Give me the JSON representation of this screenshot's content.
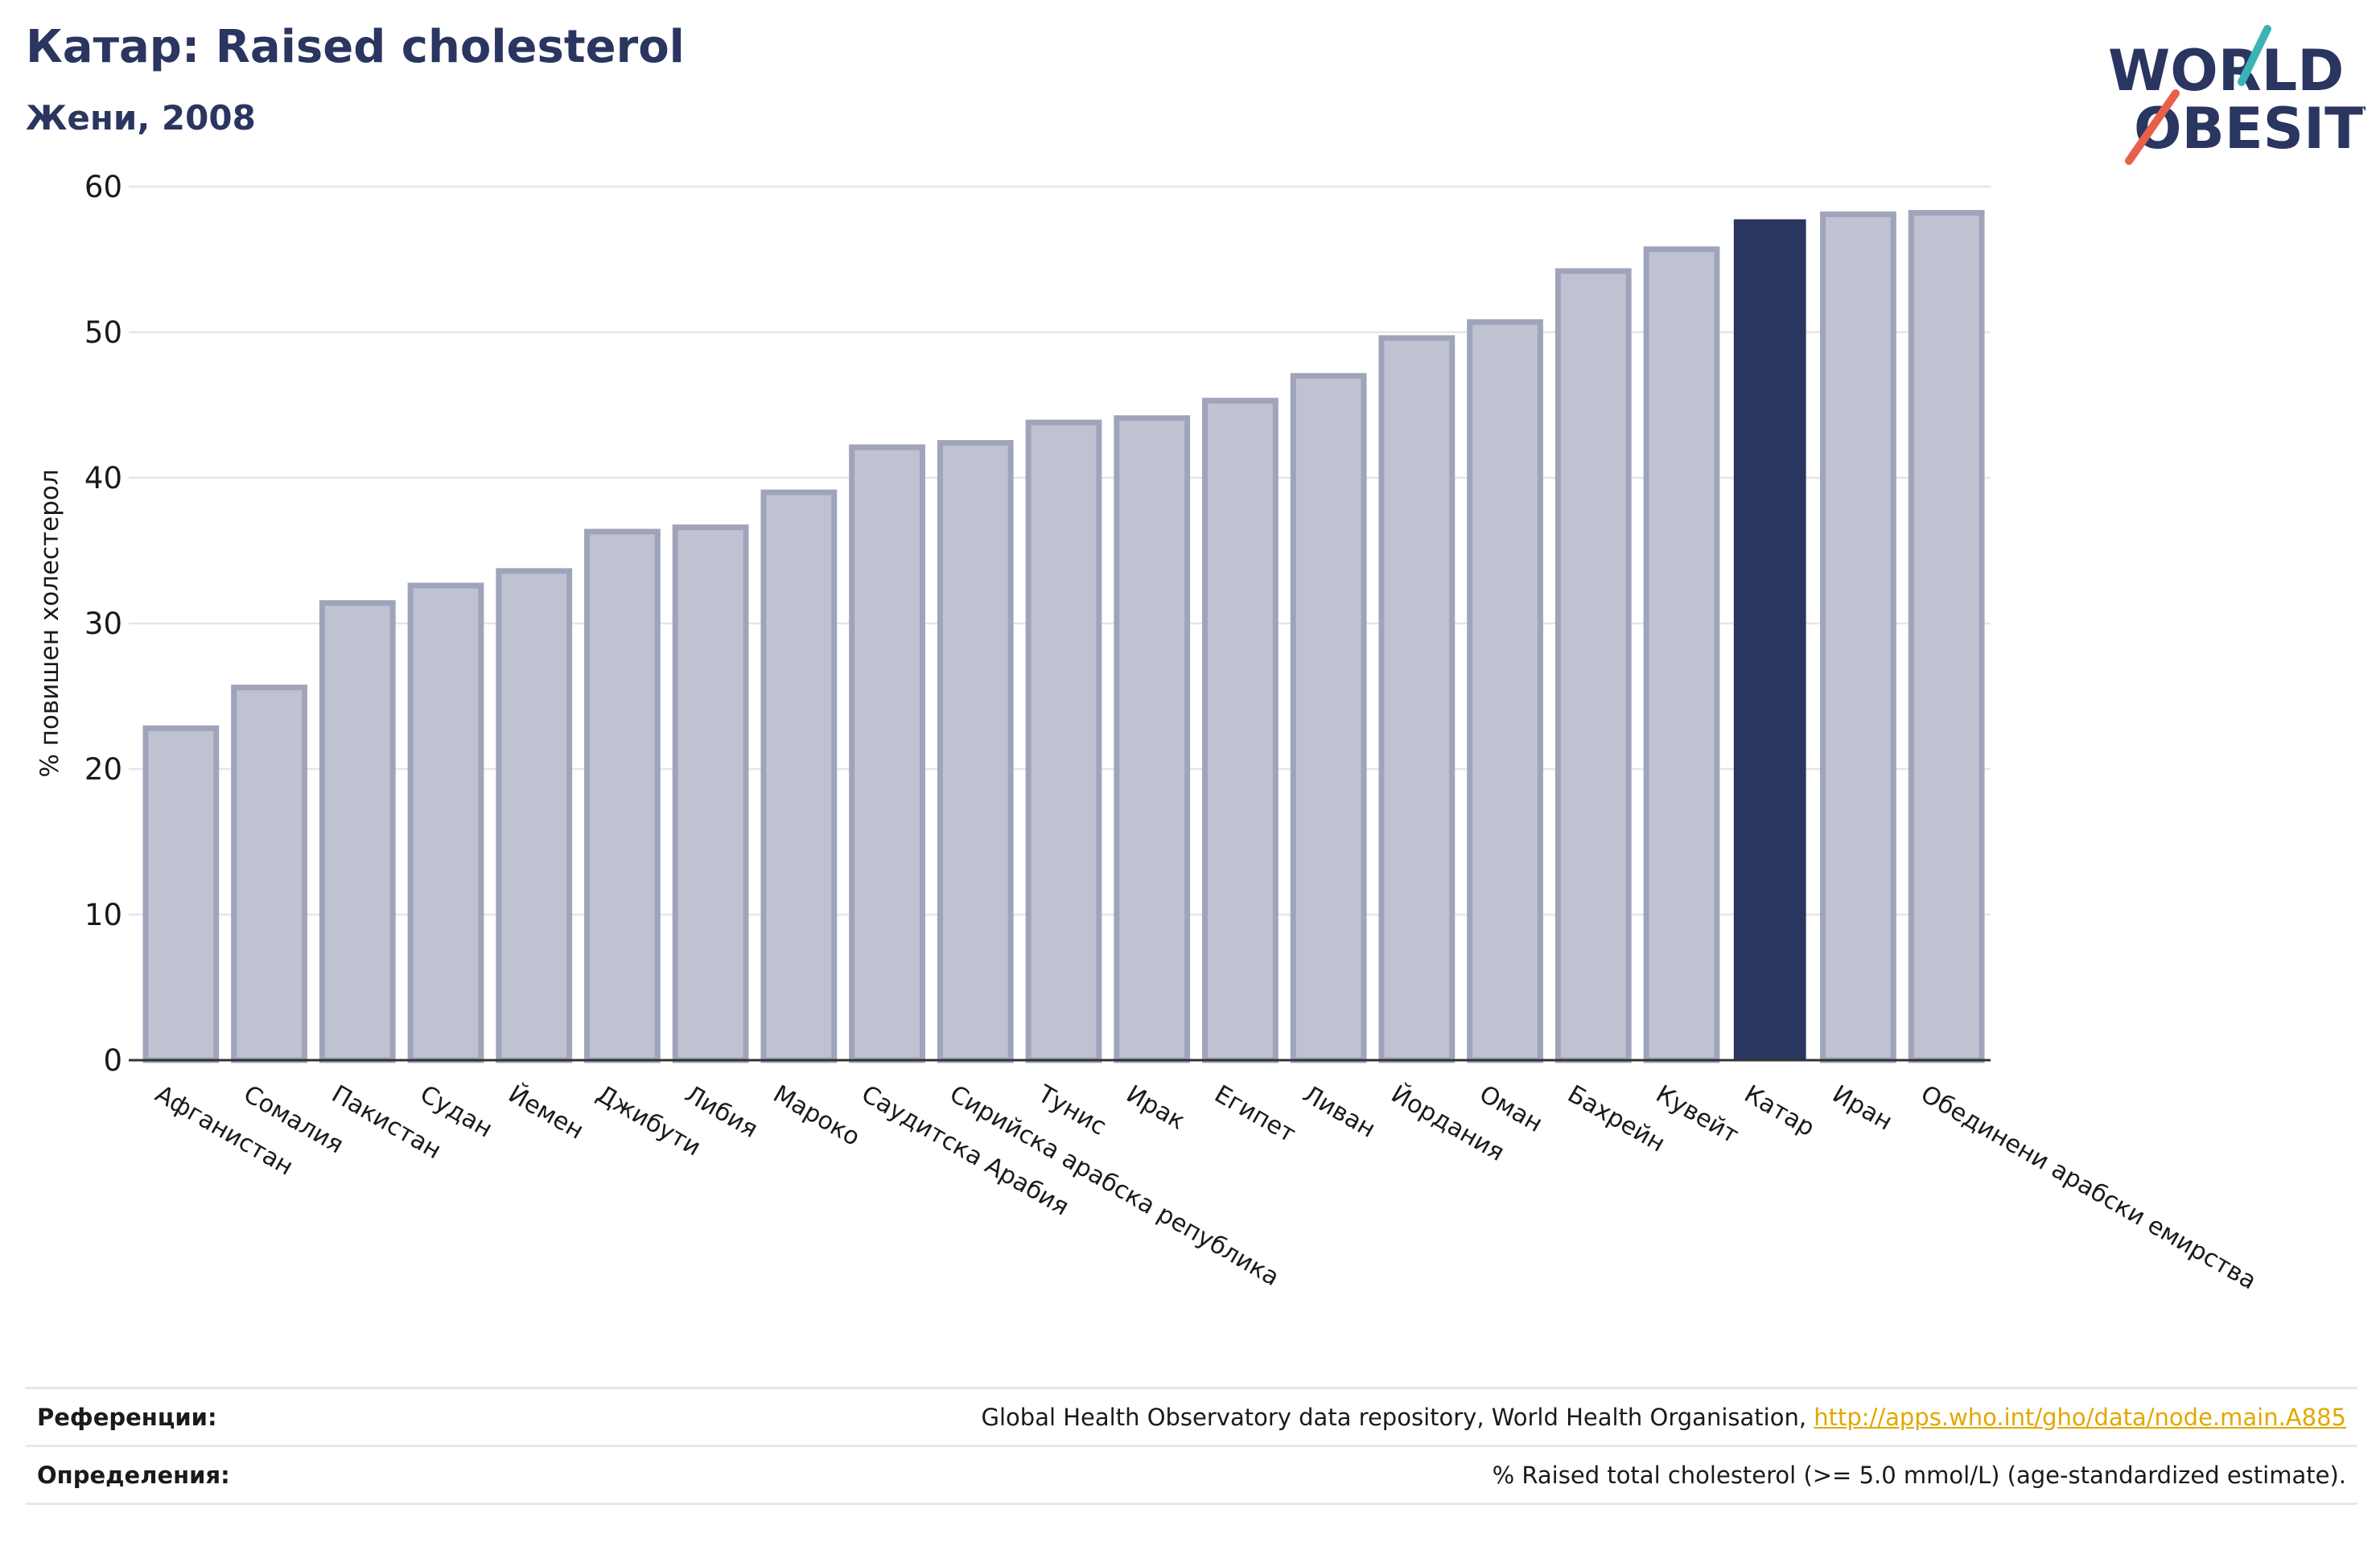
{
  "header": {
    "title": "Катар: Raised cholesterol",
    "subtitle": "Жени, 2008"
  },
  "logo": {
    "line1": "WORLD",
    "line2": "OBESITY",
    "colors": {
      "text": "#2a3560",
      "slash_teal": "#3bb3b6",
      "slash_red": "#e8604c"
    }
  },
  "colors": {
    "bar_default": "#bfc2d1",
    "bar_border": "#9fa4bb",
    "bar_highlight": "#2a3560",
    "grid": "#e6e6ea",
    "axis": "#333333"
  },
  "chart_data": {
    "type": "bar",
    "ylabel": "% повишен холестерол",
    "ylim": [
      0,
      60
    ],
    "yticks": [
      0,
      10,
      20,
      30,
      40,
      50,
      60
    ],
    "grid": true,
    "highlight": "Катар",
    "categories": [
      "Афганистан",
      "Сомалия",
      "Пакистан",
      "Судан",
      "Йемен",
      "Джибути",
      "Либия",
      "Мароко",
      "Саудитска Арабия",
      "Сирийска арабска република",
      "Тунис",
      "Ирак",
      "Египет",
      "Ливан",
      "Йордания",
      "Оман",
      "Бахрейн",
      "Кувейт",
      "Катар",
      "Иран",
      "Обединени арабски емирства"
    ],
    "values": [
      22.8,
      25.6,
      31.4,
      32.6,
      33.6,
      36.3,
      36.6,
      39.0,
      42.1,
      42.4,
      43.8,
      44.1,
      45.3,
      47.0,
      49.6,
      50.7,
      54.2,
      55.7,
      57.7,
      58.1,
      58.2
    ]
  },
  "footer": {
    "references_label": "Референции:",
    "references_text": "Global Health Observatory data repository, World Health Organisation, ",
    "references_link": "http://apps.who.int/gho/data/node.main.A885",
    "definitions_label": "Определения:",
    "definitions_text": "% Raised total cholesterol (>= 5.0 mmol/L) (age-standardized estimate)."
  }
}
